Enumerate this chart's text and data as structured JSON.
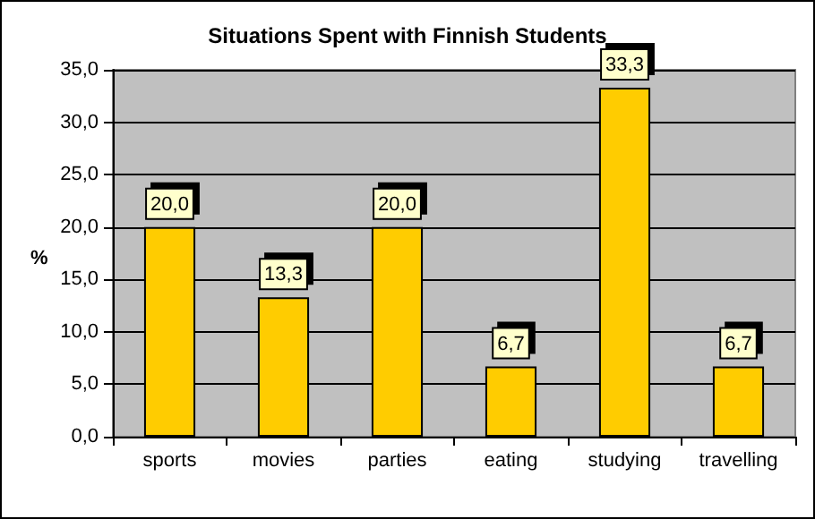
{
  "chart_data": {
    "type": "bar",
    "title": "Situations Spent with Finnish Students",
    "ylabel": "%",
    "categories": [
      "sports",
      "movies",
      "parties",
      "eating",
      "studying",
      "travelling"
    ],
    "values": [
      20.0,
      13.3,
      20.0,
      6.7,
      33.3,
      6.7
    ],
    "value_labels": [
      "20,0",
      "13,3",
      "20,0",
      "6,7",
      "33,3",
      "6,7"
    ],
    "color": "#ffcc00",
    "ylim": [
      0,
      35
    ],
    "yticks": [
      {
        "value": 0,
        "label": "0,0"
      },
      {
        "value": 5,
        "label": "5,0"
      },
      {
        "value": 10,
        "label": "10,0"
      },
      {
        "value": 15,
        "label": "15,0"
      },
      {
        "value": 20,
        "label": "20,0"
      },
      {
        "value": 25,
        "label": "25,0"
      },
      {
        "value": 30,
        "label": "30,0"
      },
      {
        "value": 35,
        "label": "35,0"
      }
    ],
    "grid": "y"
  }
}
